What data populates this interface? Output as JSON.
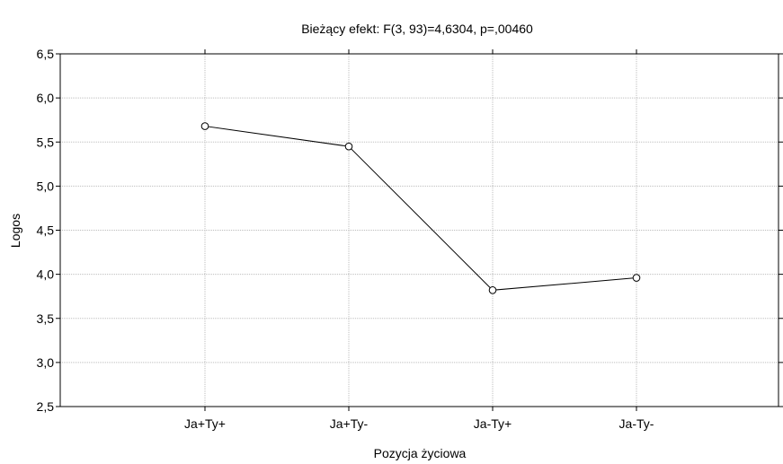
{
  "chart_data": {
    "type": "line",
    "title": "Bieżący efekt: F(3, 93)=4,6304, p=,00460",
    "xlabel": "Pozycja życiowa",
    "ylabel": "Logos",
    "categories": [
      "Ja+Ty+",
      "Ja+Ty-",
      "Ja-Ty+",
      "Ja-Ty-"
    ],
    "series": [
      {
        "values": [
          5.68,
          5.45,
          3.82,
          3.96
        ]
      }
    ],
    "ylim": [
      2.5,
      6.5
    ],
    "yticks": [
      "2,5",
      "3,0",
      "3,5",
      "4,0",
      "4,5",
      "5,0",
      "5,5",
      "6,0",
      "6,5"
    ],
    "grid": true,
    "legend": "none"
  }
}
